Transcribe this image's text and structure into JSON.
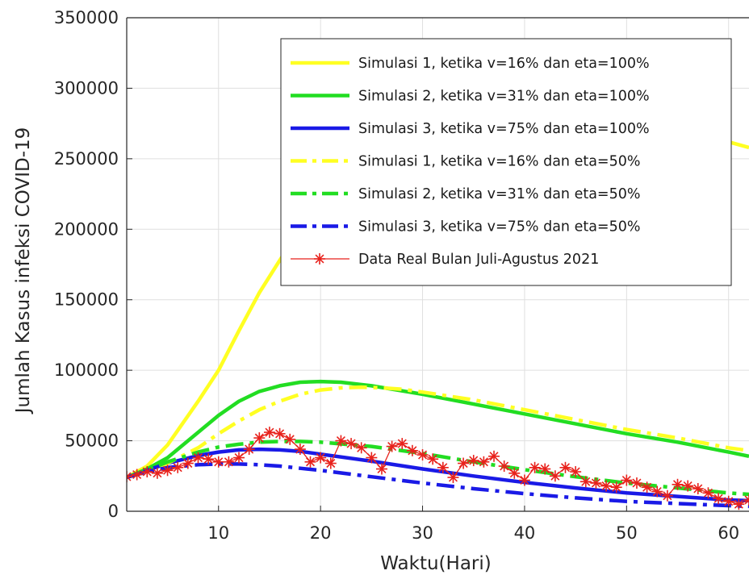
{
  "chart_data": {
    "type": "line",
    "xlabel": "Waktu(Hari)",
    "ylabel": "Jumlah Kasus infeksi COVID-19",
    "xlim": [
      1,
      62
    ],
    "ylim": [
      0,
      350000
    ],
    "xticks": [
      10,
      20,
      30,
      40,
      50,
      60
    ],
    "yticks": [
      0,
      50000,
      100000,
      150000,
      200000,
      250000,
      300000,
      350000
    ],
    "ytick_labels": [
      "0",
      "50000",
      "100000",
      "150000",
      "200000",
      "250000",
      "300000",
      "350000"
    ],
    "grid": true,
    "legend_position": "top-right",
    "series": [
      {
        "name": "Simulasi 1, ketika v=16% dan eta=100%",
        "color": "#ffff22",
        "style": "solid",
        "x": [
          1,
          3,
          5,
          8,
          10,
          12,
          14,
          16,
          18,
          60,
          62
        ],
        "y": [
          24000,
          32000,
          47000,
          78000,
          100000,
          128000,
          155000,
          178000,
          200000,
          262000,
          258000
        ]
      },
      {
        "name": "Simulasi 2, ketika v=31% dan eta=100%",
        "color": "#22dd22",
        "style": "solid",
        "x": [
          1,
          3,
          5,
          8,
          10,
          12,
          14,
          16,
          18,
          20,
          22,
          25,
          30,
          35,
          40,
          45,
          50,
          55,
          60,
          62
        ],
        "y": [
          24000,
          30000,
          38000,
          56000,
          68000,
          78000,
          85000,
          89000,
          91500,
          92000,
          91500,
          89000,
          83000,
          76000,
          69000,
          62000,
          55000,
          49000,
          42000,
          39000
        ]
      },
      {
        "name": "Simulasi 3, ketika v=75% dan eta=100%",
        "color": "#1a1ae6",
        "style": "solid",
        "x": [
          1,
          3,
          5,
          8,
          10,
          12,
          14,
          16,
          18,
          20,
          25,
          30,
          35,
          40,
          45,
          50,
          55,
          60,
          62
        ],
        "y": [
          24000,
          29000,
          34000,
          39500,
          42000,
          43500,
          44000,
          43500,
          42500,
          40500,
          35500,
          30000,
          25000,
          20500,
          16500,
          13000,
          10500,
          8000,
          7500
        ]
      },
      {
        "name": "Simulasi 1, ketika v=16% dan eta=50%",
        "color": "#ffff22",
        "style": "dashdot",
        "x": [
          1,
          3,
          5,
          8,
          10,
          12,
          14,
          16,
          18,
          20,
          22,
          24,
          26,
          28,
          30,
          35,
          40,
          45,
          50,
          55,
          60,
          62
        ],
        "y": [
          24000,
          28000,
          34000,
          45000,
          55000,
          64000,
          72000,
          78000,
          83000,
          86000,
          87500,
          88000,
          87500,
          86500,
          84500,
          79000,
          72000,
          65000,
          58000,
          52000,
          45000,
          43000
        ]
      },
      {
        "name": "Simulasi 2, ketika v=31% dan eta=50%",
        "color": "#22dd22",
        "style": "dashdot",
        "x": [
          1,
          3,
          5,
          8,
          10,
          12,
          14,
          16,
          18,
          20,
          25,
          30,
          35,
          40,
          45,
          50,
          55,
          60,
          62
        ],
        "y": [
          24000,
          29000,
          35000,
          42000,
          45500,
          47500,
          49000,
          49500,
          49500,
          49000,
          46000,
          41000,
          35000,
          29500,
          24500,
          20000,
          16500,
          13000,
          12000
        ]
      },
      {
        "name": "Simulasi 3, ketika v=75% dan eta=50%",
        "color": "#1a1ae6",
        "style": "dashdot",
        "x": [
          1,
          3,
          5,
          8,
          10,
          12,
          14,
          16,
          18,
          20,
          25,
          30,
          35,
          40,
          45,
          50,
          55,
          60,
          62
        ],
        "y": [
          24000,
          28000,
          31000,
          33000,
          33500,
          33500,
          33000,
          32000,
          30500,
          29000,
          24500,
          20000,
          16000,
          12500,
          9500,
          7000,
          5500,
          4000,
          3500
        ]
      },
      {
        "name": "Data Real Bulan Juli-Agustus 2021",
        "color": "#e8221c",
        "style": "line-asterisk",
        "x": [
          1,
          2,
          3,
          4,
          5,
          6,
          7,
          8,
          9,
          10,
          11,
          12,
          13,
          14,
          15,
          16,
          17,
          18,
          19,
          20,
          21,
          22,
          23,
          24,
          25,
          26,
          27,
          28,
          29,
          30,
          31,
          32,
          33,
          34,
          35,
          36,
          37,
          38,
          39,
          40,
          41,
          42,
          43,
          44,
          45,
          46,
          47,
          48,
          49,
          50,
          51,
          52,
          53,
          54,
          55,
          56,
          57,
          58,
          59,
          60,
          61,
          62
        ],
        "y": [
          24500,
          26000,
          28000,
          27000,
          29000,
          31000,
          34000,
          38000,
          37000,
          35000,
          35000,
          38000,
          44000,
          52000,
          56000,
          55000,
          51000,
          44000,
          35000,
          38000,
          34000,
          50000,
          48000,
          45000,
          38000,
          30000,
          46000,
          48000,
          43000,
          40000,
          37000,
          31000,
          24000,
          34000,
          36000,
          35000,
          39000,
          32000,
          27000,
          22000,
          31000,
          30000,
          25000,
          31000,
          28000,
          21000,
          20000,
          18000,
          17000,
          22000,
          20000,
          17000,
          14000,
          11000,
          19000,
          18000,
          16000,
          13000,
          9000,
          7000,
          5000,
          8000
        ]
      }
    ]
  }
}
